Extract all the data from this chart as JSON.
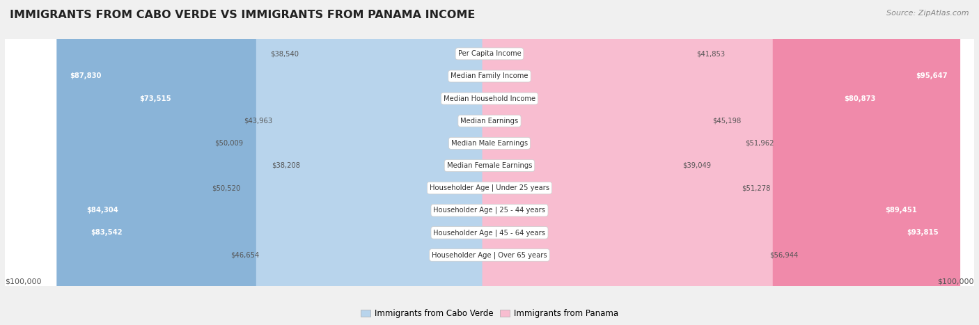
{
  "title": "IMMIGRANTS FROM CABO VERDE VS IMMIGRANTS FROM PANAMA INCOME",
  "source": "Source: ZipAtlas.com",
  "categories": [
    "Per Capita Income",
    "Median Family Income",
    "Median Household Income",
    "Median Earnings",
    "Median Male Earnings",
    "Median Female Earnings",
    "Householder Age | Under 25 years",
    "Householder Age | 25 - 44 years",
    "Householder Age | 45 - 64 years",
    "Householder Age | Over 65 years"
  ],
  "cabo_verde": [
    38540,
    87830,
    73515,
    43963,
    50009,
    38208,
    50520,
    84304,
    83542,
    46654
  ],
  "panama": [
    41853,
    95647,
    80873,
    45198,
    51962,
    39049,
    51278,
    89451,
    93815,
    56944
  ],
  "max_value": 100000,
  "cabo_verde_color": "#8ab4d8",
  "panama_color": "#f08aaa",
  "cabo_verde_color_light": "#b8d4ec",
  "panama_color_light": "#f8bdd0",
  "background_color": "#f0f0f0",
  "row_bg_color": "#ffffff",
  "row_border_color": "#cccccc",
  "threshold_cabo": 65000,
  "threshold_panama": 65000,
  "legend_cabo": "Immigrants from Cabo Verde",
  "legend_panama": "Immigrants from Panama"
}
